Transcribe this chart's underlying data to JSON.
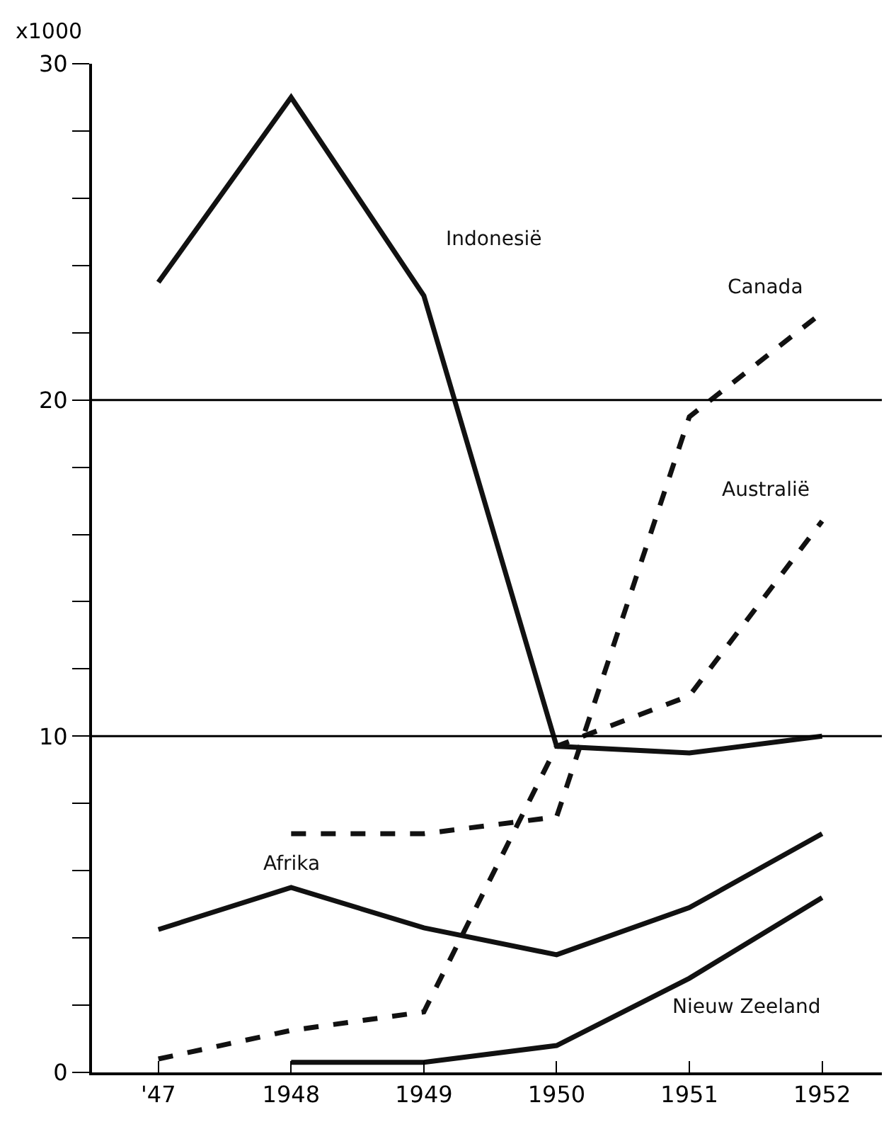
{
  "chart_data": {
    "type": "line",
    "ylabel": "x1000",
    "x": [
      1947,
      1948,
      1949,
      1950,
      1951,
      1952
    ],
    "xlim": [
      1946.5,
      1952.45
    ],
    "xticks": [
      {
        "value": 1947,
        "label": "'47"
      },
      1948,
      1949,
      1950,
      1951,
      1952
    ],
    "ylim": [
      0,
      30
    ],
    "yticks": [
      0,
      {
        "value": 2,
        "label": null
      },
      {
        "value": 4,
        "label": null
      },
      {
        "value": 6,
        "label": null
      },
      {
        "value": 8,
        "label": null
      },
      10,
      {
        "value": 12,
        "label": null
      },
      {
        "value": 14,
        "label": null
      },
      {
        "value": 16,
        "label": null
      },
      {
        "value": 18,
        "label": null
      },
      20,
      {
        "value": 22,
        "label": null
      },
      {
        "value": 24,
        "label": null
      },
      {
        "value": 26,
        "label": null
      },
      {
        "value": 28,
        "label": null
      },
      30
    ],
    "ref_lines": [
      {
        "axis": "y",
        "value": 10,
        "color": "#000000"
      },
      {
        "axis": "y",
        "value": 20,
        "color": "#000000"
      }
    ],
    "legend": false,
    "marker": "none",
    "series": [
      {
        "name": "Indonesië",
        "color": "#111111",
        "line_style": "solid",
        "values": [
          23.5,
          29.0,
          23.1,
          9.7,
          9.5,
          10.0
        ]
      },
      {
        "name": "Canada",
        "color": "#111111",
        "line_style": "dashed",
        "values": [
          null,
          7.1,
          7.1,
          7.6,
          19.5,
          22.6
        ]
      },
      {
        "name": "Australië",
        "color": "#111111",
        "line_style": "dashed",
        "values": [
          0.4,
          1.25,
          1.8,
          9.7,
          11.2,
          16.4
        ]
      },
      {
        "name": "Afrika",
        "color": "#111111",
        "line_style": "solid",
        "values": [
          4.25,
          5.5,
          4.3,
          3.5,
          4.9,
          7.1
        ]
      },
      {
        "name": "Nieuw Zeeland",
        "color": "#111111",
        "line_style": "solid",
        "values": [
          null,
          0.3,
          0.3,
          0.8,
          2.8,
          5.2
        ]
      }
    ]
  }
}
